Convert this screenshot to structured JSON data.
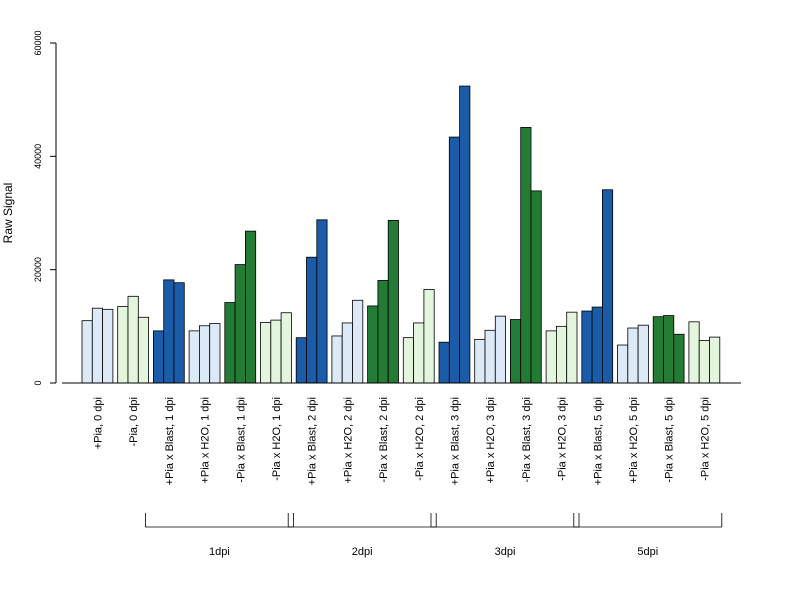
{
  "chart_data": {
    "type": "bar",
    "ylabel": "Raw Signal",
    "ylim": [
      0,
      60000
    ],
    "yticks": [
      0,
      20000,
      40000,
      60000
    ],
    "categories": [
      "+Pia, 0 dpi",
      "-Pia, 0 dpi",
      "+Pia x Blast, 1 dpi",
      "+Pia x H2O, 1 dpi",
      "-Pia x Blast, 1 dpi",
      "-Pia x H2O, 1 dpi",
      "+Pia x Blast, 2 dpi",
      "+Pia x H2O, 2 dpi",
      "-Pia x Blast, 2 dpi",
      "-Pia x H2O, 2 dpi",
      "+Pia x Blast, 3 dpi",
      "+Pia x H2O, 3 dpi",
      "-Pia x Blast, 3 dpi",
      "-Pia x H2O, 3 dpi",
      "+Pia x Blast, 5 dpi",
      "+Pia x H2O, 5 dpi",
      "-Pia x Blast, 5 dpi",
      "-Pia x H2O, 5 dpi"
    ],
    "groups_values": [
      [
        11000,
        13200,
        13000
      ],
      [
        13500,
        15300,
        11600
      ],
      [
        9200,
        18200,
        17700
      ],
      [
        9200,
        10100,
        10500
      ],
      [
        14200,
        20900,
        26800
      ],
      [
        10700,
        11100,
        12400
      ],
      [
        8000,
        22200,
        28800
      ],
      [
        8300,
        10600,
        14600
      ],
      [
        13600,
        18100,
        28700
      ],
      [
        8000,
        10600,
        16500
      ],
      [
        7200,
        43400,
        52400
      ],
      [
        7700,
        9300,
        11800
      ],
      [
        11200,
        45100,
        33900
      ],
      [
        9200,
        10000,
        12500
      ],
      [
        12700,
        13400,
        34100
      ],
      [
        6700,
        9700,
        10200
      ],
      [
        11700,
        11900,
        8600
      ],
      [
        10800,
        7500,
        8100
      ]
    ],
    "group_colors": [
      "#dce9f7",
      "#e3f5dc",
      "#1b5ca8",
      "#dce9f7",
      "#237b35",
      "#e3f5dc",
      "#1b5ca8",
      "#dce9f7",
      "#237b35",
      "#e3f5dc",
      "#1b5ca8",
      "#dce9f7",
      "#237b35",
      "#e3f5dc",
      "#1b5ca8",
      "#dce9f7",
      "#237b35",
      "#e3f5dc"
    ],
    "brackets": [
      {
        "label": "1dpi",
        "from": 2,
        "to": 5
      },
      {
        "label": "2dpi",
        "from": 6,
        "to": 9
      },
      {
        "label": "3dpi",
        "from": 10,
        "to": 13
      },
      {
        "label": "5dpi",
        "from": 14,
        "to": 17
      }
    ],
    "grid": false,
    "legend": "none"
  }
}
